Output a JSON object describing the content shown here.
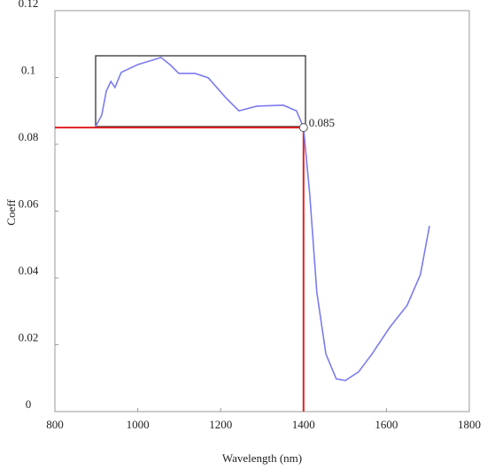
{
  "chart_data": {
    "type": "line",
    "x_label": "Wavelength (nm)",
    "y_label": "Coeff",
    "x": [
      898,
      913,
      924,
      935,
      945,
      960,
      999,
      1041,
      1056,
      1078,
      1099,
      1138,
      1170,
      1212,
      1244,
      1287,
      1351,
      1383,
      1400,
      1415,
      1432,
      1454,
      1479,
      1501,
      1533,
      1565,
      1608,
      1650,
      1682,
      1704
    ],
    "series": [
      {
        "color": "#7b7bf0",
        "values": [
          0.0853,
          0.0887,
          0.0959,
          0.0988,
          0.097,
          0.1015,
          0.1038,
          0.1054,
          0.106,
          0.1038,
          0.1012,
          0.1012,
          0.0999,
          0.094,
          0.09,
          0.0914,
          0.0917,
          0.09,
          0.085,
          0.065,
          0.0358,
          0.0172,
          0.0098,
          0.0093,
          0.0119,
          0.0172,
          0.0252,
          0.0318,
          0.041,
          0.0556
        ]
      }
    ],
    "xlim": [
      800,
      1800
    ],
    "xticks": [
      800,
      1000,
      1200,
      1400,
      1600,
      1800
    ],
    "ylim": [
      0,
      0.12
    ],
    "yticks": [
      0,
      0.02,
      0.04,
      0.06,
      0.08,
      0.1,
      0.12
    ],
    "annotation": {
      "x": 1400,
      "y": 0.085,
      "label": "0.085",
      "color": "#e02020"
    }
  }
}
